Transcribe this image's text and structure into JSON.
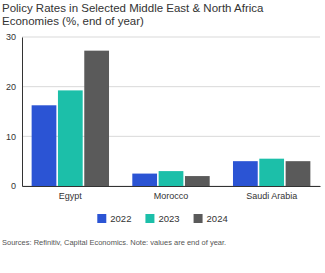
{
  "chart_data": {
    "type": "bar",
    "title": "Policy Rates in Selected Middle East & North Africa Economies (%, end of year)",
    "source": "Sources: Refinitiv, Capital Economics. Note: values are end of year.",
    "categories": [
      "Egypt",
      "Morocco",
      "Saudi Arabia"
    ],
    "series": [
      {
        "name": "2022",
        "color": "#2b54d4",
        "values": [
          16.25,
          2.5,
          5.0
        ]
      },
      {
        "name": "2023",
        "color": "#1cbfa9",
        "values": [
          19.25,
          3.0,
          5.5
        ]
      },
      {
        "name": "2024",
        "color": "#5a5a5a",
        "values": [
          27.25,
          2.0,
          5.0
        ]
      }
    ],
    "ylim": [
      0,
      30
    ],
    "yticks": [
      0,
      10,
      20,
      30
    ],
    "grid": true,
    "legend": "bottom"
  }
}
